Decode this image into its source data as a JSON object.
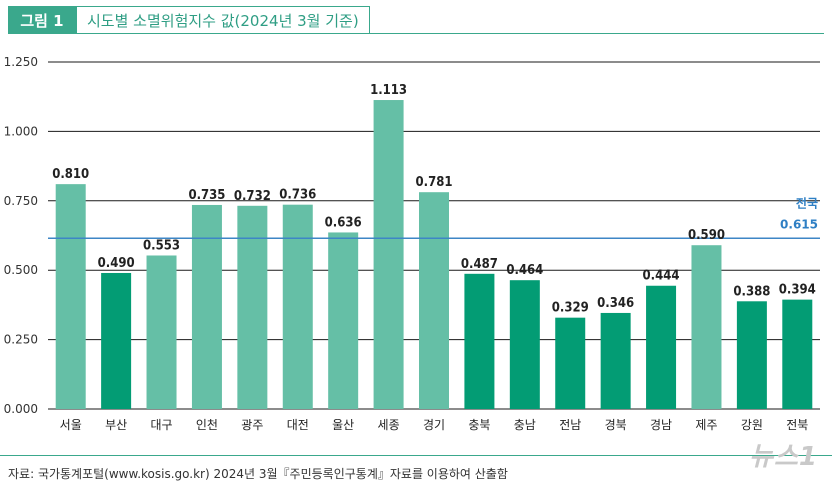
{
  "figure": {
    "label": "그림 1",
    "title": "시도별 소멸위험지수 값(2024년 3월 기준)"
  },
  "chart_data": {
    "type": "bar",
    "title": "시도별 소멸위험지수 값(2024년 3월 기준)",
    "xlabel": "",
    "ylabel": "",
    "ylim": [
      0,
      1.25
    ],
    "yticks": [
      "0.000",
      "0.250",
      "0.500",
      "0.750",
      "1.000",
      "1.250"
    ],
    "grid": true,
    "categories": [
      "서울",
      "부산",
      "대구",
      "인천",
      "광주",
      "대전",
      "울산",
      "세종",
      "경기",
      "충북",
      "충남",
      "전남",
      "경북",
      "경남",
      "제주",
      "강원",
      "전북"
    ],
    "values": [
      0.81,
      0.49,
      0.553,
      0.735,
      0.732,
      0.736,
      0.636,
      1.113,
      0.781,
      0.487,
      0.464,
      0.329,
      0.346,
      0.444,
      0.59,
      0.388,
      0.394
    ],
    "value_labels": [
      "0.810",
      "0.490",
      "0.553",
      "0.735",
      "0.732",
      "0.736",
      "0.636",
      "1.113",
      "0.781",
      "0.487",
      "0.464",
      "0.329",
      "0.346",
      "0.444",
      "0.590",
      "0.388",
      "0.394"
    ],
    "reference_line": {
      "label": "전국",
      "value": 0.615,
      "value_label": "0.615"
    },
    "colors": {
      "light": "#65bfa6",
      "dark": "#039c74",
      "reference": "#3d86c6",
      "grid": "#1a1a1a"
    },
    "shade": [
      "light",
      "dark",
      "light",
      "light",
      "light",
      "light",
      "light",
      "light",
      "light",
      "dark",
      "dark",
      "dark",
      "dark",
      "dark",
      "light",
      "dark",
      "dark"
    ]
  },
  "source": "자료: 국가통계포털(www.kosis.go.kr) 2024년 3월『주민등록인구통계』자료를 이용하여 산출함",
  "watermark": "뉴스1"
}
